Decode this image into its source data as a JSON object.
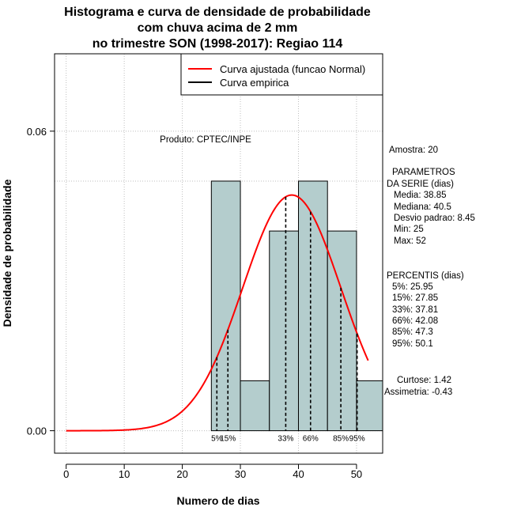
{
  "chart_data": {
    "type": "histogram",
    "title_lines": [
      "Histograma e curva de densidade de probabilidade",
      "com chuva acima de 2 mm",
      "no trimestre SON (1998-2017): Regiao 114"
    ],
    "xlabel": "Numero de dias",
    "ylabel": "Densidade de probabilidade",
    "xlim": [
      -2,
      54.5
    ],
    "ylim": [
      -0.0045,
      0.0755
    ],
    "x_ticks": [
      0,
      10,
      20,
      30,
      40,
      50
    ],
    "x_tick_labels": [
      "0",
      "10",
      "20",
      "30",
      "40",
      "50"
    ],
    "y_ticks": [
      0.0,
      0.06
    ],
    "y_tick_labels": [
      "0.00",
      "0.06"
    ],
    "grid": true,
    "bins": [
      {
        "x0": 25,
        "x1": 30,
        "density": 0.05
      },
      {
        "x0": 30,
        "x1": 35,
        "density": 0.01
      },
      {
        "x0": 35,
        "x1": 40,
        "density": 0.04
      },
      {
        "x0": 40,
        "x1": 45,
        "density": 0.05
      },
      {
        "x0": 45,
        "x1": 50,
        "density": 0.04
      },
      {
        "x0": 50,
        "x1": 55,
        "density": 0.01
      }
    ],
    "normal_fit": {
      "mean": 38.85,
      "sd": 8.45,
      "x_range": [
        0,
        52
      ]
    },
    "percentile_lines": [
      {
        "label": "5%",
        "x": 25.95
      },
      {
        "label": "15%",
        "x": 27.85
      },
      {
        "label": "33%",
        "x": 37.81
      },
      {
        "label": "66%",
        "x": 42.08
      },
      {
        "label": "85%",
        "x": 47.3
      },
      {
        "label": "95%",
        "x": 50.1
      }
    ],
    "legend": {
      "position": "top-right",
      "entries": [
        {
          "label": "Curva ajustada (funcao Normal)",
          "color": "#ff0000"
        },
        {
          "label": "Curva empirica",
          "color": "#000000"
        }
      ]
    },
    "colors": {
      "bar_fill": "#b4cdcd",
      "fit_curve": "#ff0000",
      "grid": "#bebebe"
    },
    "annotations": {
      "product": "Produto: CPTEC/INPE",
      "sample": "Amostra: 20",
      "params_header_1": "PARAMETROS",
      "params_header_2": "DA SERIE (dias)",
      "params": [
        "Media: 38.85",
        "Mediana: 40.5",
        "Desvio padrao: 8.45",
        "Min: 25",
        "Max: 52"
      ],
      "percentiles_header": "PERCENTIS (dias)",
      "percentiles": [
        "5%: 25.95",
        "15%: 27.85",
        "33%: 37.81",
        "66%: 42.08",
        "85%: 47.3",
        "95%: 50.1"
      ],
      "kurtosis": "Curtose: 1.42",
      "skewness": "Assimetria: -0.43"
    }
  }
}
